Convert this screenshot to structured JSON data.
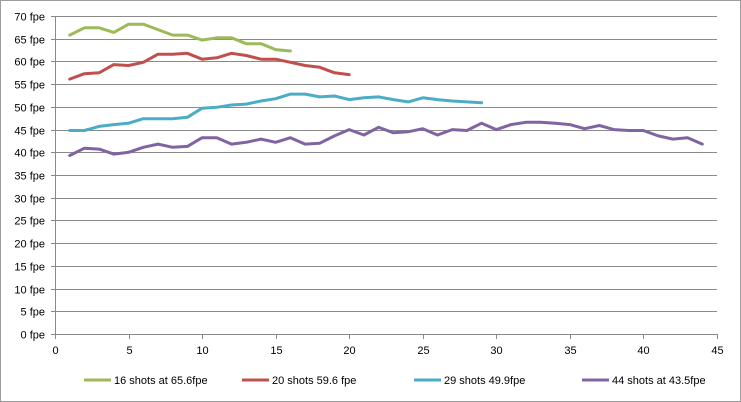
{
  "chart_data": {
    "type": "line",
    "title": "",
    "xlabel": "",
    "ylabel": "",
    "xlim": [
      0,
      45
    ],
    "ylim": [
      0,
      70
    ],
    "x_ticks": [
      0,
      5,
      10,
      15,
      20,
      25,
      30,
      35,
      40,
      45
    ],
    "x_tick_labels": [
      "0",
      "5",
      "10",
      "15",
      "20",
      "25",
      "30",
      "35",
      "40",
      "45"
    ],
    "y_ticks": [
      0,
      5,
      10,
      15,
      20,
      25,
      30,
      35,
      40,
      45,
      50,
      55,
      60,
      65,
      70
    ],
    "y_tick_labels": [
      "0 fpe",
      "5 fpe",
      "10 fpe",
      "15 fpe",
      "20 fpe",
      "25 fpe",
      "30 fpe",
      "35 fpe",
      "40 fpe",
      "45 fpe",
      "50 fpe",
      "55 fpe",
      "60 fpe",
      "65 fpe",
      "70 fpe"
    ],
    "grid": "horizontal",
    "legend_position": "bottom",
    "series": [
      {
        "name": "16 shots at 65.6fpe",
        "color": "#9BBB59",
        "x": [
          1,
          2,
          3,
          4,
          5,
          6,
          7,
          8,
          9,
          10,
          11,
          12,
          13,
          14,
          15,
          16
        ],
        "values": [
          65.8,
          67.4,
          67.4,
          66.4,
          68.2,
          68.2,
          67.0,
          65.8,
          65.8,
          64.7,
          65.2,
          65.2,
          63.9,
          63.9,
          62.6,
          62.3
        ]
      },
      {
        "name": "20 shots 59.6 fpe",
        "color": "#C0504D",
        "x": [
          1,
          2,
          3,
          4,
          5,
          6,
          7,
          8,
          9,
          10,
          11,
          12,
          13,
          14,
          15,
          16,
          17,
          18,
          19,
          20
        ],
        "values": [
          56.1,
          57.3,
          57.5,
          59.3,
          59.1,
          59.8,
          61.6,
          61.6,
          61.8,
          60.5,
          60.8,
          61.8,
          61.3,
          60.5,
          60.5,
          59.8,
          59.1,
          58.7,
          57.5,
          57.1
        ]
      },
      {
        "name": "29 shots 49.9fpe",
        "color": "#4BACC6",
        "x": [
          1,
          2,
          3,
          4,
          5,
          6,
          7,
          8,
          9,
          10,
          11,
          12,
          13,
          14,
          15,
          16,
          17,
          18,
          19,
          20,
          21,
          22,
          23,
          24,
          25,
          26,
          27,
          28,
          29
        ],
        "values": [
          44.8,
          44.8,
          45.7,
          46.1,
          46.4,
          47.4,
          47.4,
          47.4,
          47.7,
          49.7,
          49.9,
          50.4,
          50.6,
          51.3,
          51.8,
          52.8,
          52.8,
          52.2,
          52.4,
          51.6,
          52.0,
          52.2,
          51.6,
          51.1,
          52.0,
          51.6,
          51.3,
          51.1,
          50.9
        ]
      },
      {
        "name": "44 shots at 43.5fpe",
        "color": "#8064A2",
        "x": [
          1,
          2,
          3,
          4,
          5,
          6,
          7,
          8,
          9,
          10,
          11,
          12,
          13,
          14,
          15,
          16,
          17,
          18,
          19,
          20,
          21,
          22,
          23,
          24,
          25,
          26,
          27,
          28,
          29,
          30,
          31,
          32,
          33,
          34,
          35,
          36,
          37,
          38,
          39,
          40,
          41,
          42,
          43,
          44
        ],
        "values": [
          39.3,
          40.9,
          40.7,
          39.6,
          40.0,
          41.1,
          41.8,
          41.1,
          41.3,
          43.2,
          43.2,
          41.8,
          42.2,
          42.9,
          42.2,
          43.2,
          41.8,
          42.0,
          43.6,
          45.0,
          43.8,
          45.5,
          44.3,
          44.5,
          45.2,
          43.8,
          45.0,
          44.8,
          46.4,
          45.0,
          46.1,
          46.6,
          46.6,
          46.4,
          46.1,
          45.2,
          45.9,
          45.0,
          44.8,
          44.8,
          43.6,
          42.9,
          43.2,
          41.8
        ]
      }
    ]
  }
}
